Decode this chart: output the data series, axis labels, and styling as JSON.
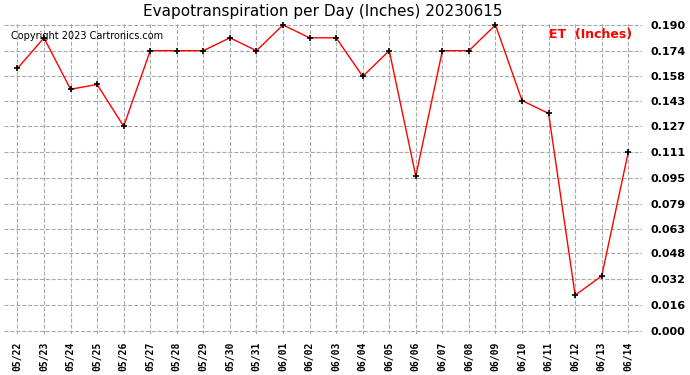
{
  "title": "Evapotranspiration per Day (Inches) 20230615",
  "copyright": "Copyright 2023 Cartronics.com",
  "legend_label": "ET  (Inches)",
  "dates": [
    "05/22",
    "05/23",
    "05/24",
    "05/25",
    "05/26",
    "05/27",
    "05/28",
    "05/29",
    "05/30",
    "05/31",
    "06/01",
    "06/02",
    "06/03",
    "06/04",
    "06/05",
    "06/06",
    "06/07",
    "06/08",
    "06/09",
    "06/10",
    "06/11",
    "06/12",
    "06/13",
    "06/14"
  ],
  "values": [
    0.163,
    0.182,
    0.15,
    0.153,
    0.127,
    0.174,
    0.174,
    0.174,
    0.182,
    0.174,
    0.19,
    0.182,
    0.182,
    0.158,
    0.174,
    0.096,
    0.174,
    0.174,
    0.19,
    0.143,
    0.135,
    0.022,
    0.034,
    0.111
  ],
  "ylim": [
    0.0,
    0.19
  ],
  "yticks": [
    0.0,
    0.016,
    0.032,
    0.048,
    0.063,
    0.079,
    0.095,
    0.111,
    0.127,
    0.143,
    0.158,
    0.174,
    0.19
  ],
  "line_color": "red",
  "marker": "+",
  "marker_color": "black",
  "marker_size": 5,
  "marker_linewidth": 1.2,
  "line_width": 1.0,
  "grid_color": "#aaaaaa",
  "grid_style": "--",
  "bg_color": "white",
  "title_fontsize": 11,
  "title_fontfamily": "serif",
  "legend_color": "red",
  "legend_fontsize": 9,
  "copyright_color": "black",
  "copyright_fontsize": 7,
  "ytick_fontsize": 8,
  "xtick_fontsize": 7,
  "ytick_fontweight": "bold",
  "xtick_fontfamily": "monospace"
}
